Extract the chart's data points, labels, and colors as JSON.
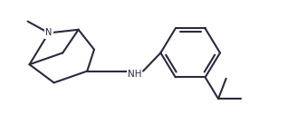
{
  "background_color": "#ffffff",
  "line_color": "#2a2a3e",
  "line_width": 1.5,
  "figsize": [
    3.18,
    1.26
  ],
  "dpi": 100
}
